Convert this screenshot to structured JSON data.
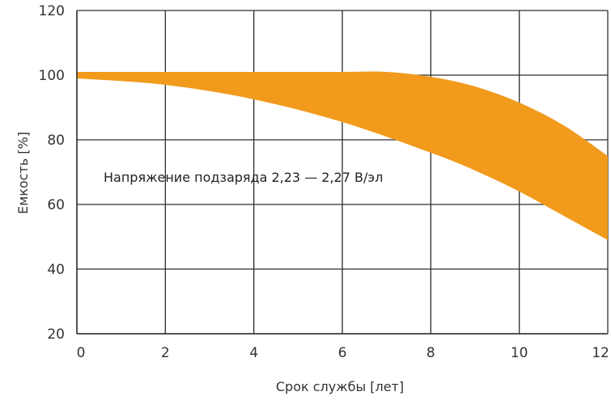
{
  "chart_data": {
    "type": "area",
    "xlabel": "Срок службы [лет]",
    "ylabel": "Емкость [%]",
    "annotation": "Напряжение подзаряда 2,23 — 2,27 В/эл",
    "xlim": [
      0,
      12
    ],
    "ylim": [
      20,
      120
    ],
    "x_ticks": [
      "0",
      "2",
      "4",
      "6",
      "8",
      "10",
      "12"
    ],
    "y_ticks": [
      "20",
      "40",
      "60",
      "80",
      "100",
      "120"
    ],
    "grid": true,
    "band_color": "#f19a1c",
    "series": [
      {
        "values_upper": [
          [
            0,
            101
          ],
          [
            2,
            101
          ],
          [
            4,
            101
          ],
          [
            6,
            101
          ],
          [
            7,
            101
          ],
          [
            8,
            99.5
          ],
          [
            9,
            96.5
          ],
          [
            10,
            91.5
          ],
          [
            11,
            84.5
          ],
          [
            12,
            75
          ]
        ],
        "values_lower": [
          [
            0,
            99
          ],
          [
            2,
            97
          ],
          [
            4,
            92.5
          ],
          [
            6,
            85.5
          ],
          [
            8,
            76
          ],
          [
            9,
            70.5
          ],
          [
            10,
            64
          ],
          [
            11,
            56.5
          ],
          [
            12,
            49
          ]
        ]
      }
    ]
  }
}
